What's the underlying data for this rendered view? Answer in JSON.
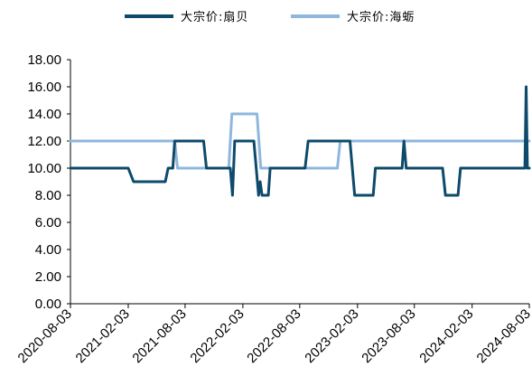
{
  "colors": {
    "dark": "#0d4a6b",
    "light": "#8fb7dd",
    "axis": "#000000"
  },
  "chart_data": {
    "type": "line",
    "ylim": [
      0,
      18
    ],
    "yticks": [
      "0.00",
      "2.00",
      "4.00",
      "6.00",
      "8.00",
      "10.00",
      "12.00",
      "14.00",
      "16.00",
      "18.00"
    ],
    "x_range": [
      "2020-08-03",
      "2024-08-03"
    ],
    "xticks": [
      "2020-08-03",
      "2021-02-03",
      "2021-08-03",
      "2022-02-03",
      "2022-08-03",
      "2023-02-03",
      "2023-08-03",
      "2024-02-03",
      "2024-08-03"
    ],
    "legend_position": "top",
    "series": [
      {
        "name": "大宗价:扇贝",
        "color": "#0d4a6b",
        "points": [
          [
            "2020-08-03",
            10
          ],
          [
            "2021-02-03",
            10
          ],
          [
            "2021-02-20",
            9
          ],
          [
            "2021-06-01",
            9
          ],
          [
            "2021-06-10",
            10
          ],
          [
            "2021-06-25",
            10
          ],
          [
            "2021-07-01",
            12
          ],
          [
            "2021-10-01",
            12
          ],
          [
            "2021-10-10",
            10
          ],
          [
            "2021-12-25",
            10
          ],
          [
            "2022-01-01",
            8
          ],
          [
            "2022-01-08",
            12
          ],
          [
            "2022-03-10",
            12
          ],
          [
            "2022-03-25",
            8
          ],
          [
            "2022-03-30",
            9
          ],
          [
            "2022-04-05",
            8
          ],
          [
            "2022-04-25",
            8
          ],
          [
            "2022-05-01",
            10
          ],
          [
            "2022-08-20",
            10
          ],
          [
            "2022-08-30",
            12
          ],
          [
            "2023-01-10",
            12
          ],
          [
            "2023-01-25",
            8
          ],
          [
            "2023-03-25",
            8
          ],
          [
            "2023-04-01",
            10
          ],
          [
            "2023-06-25",
            10
          ],
          [
            "2023-07-01",
            12
          ],
          [
            "2023-07-08",
            10
          ],
          [
            "2023-11-01",
            10
          ],
          [
            "2023-11-10",
            8
          ],
          [
            "2023-12-20",
            8
          ],
          [
            "2023-12-28",
            10
          ],
          [
            "2024-07-20",
            10
          ],
          [
            "2024-07-24",
            16
          ],
          [
            "2024-07-28",
            10
          ],
          [
            "2024-08-03",
            10
          ]
        ]
      },
      {
        "name": "大宗价:海蛎",
        "color": "#8fb7dd",
        "points": [
          [
            "2020-08-03",
            12
          ],
          [
            "2021-07-01",
            12
          ],
          [
            "2021-07-10",
            10
          ],
          [
            "2021-12-20",
            10
          ],
          [
            "2021-12-30",
            14
          ],
          [
            "2022-03-20",
            14
          ],
          [
            "2022-04-01",
            10
          ],
          [
            "2022-12-01",
            10
          ],
          [
            "2022-12-10",
            12
          ],
          [
            "2024-08-03",
            12
          ]
        ]
      }
    ]
  }
}
